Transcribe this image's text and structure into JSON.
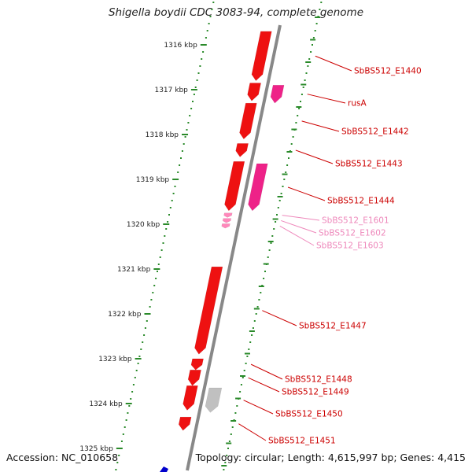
{
  "title": "Shigella boydii CDC 3083-94, complete genome",
  "footer": {
    "accession": "Accession: NC_010658",
    "stats": "Topology: circular; Length: 4,615,997 bp; Genes: 4,415"
  },
  "colors": {
    "background": "#ffffff",
    "backbone": "#888888",
    "tick_dots": "#2a8a2a",
    "gene_red": "#ee1111",
    "gene_magenta": "#ee2288",
    "gene_pink": "#ff88bb",
    "gene_grey": "#c0c0c0",
    "label_red": "#cc0000",
    "label_pink": "#ee88bb",
    "text": "#222222"
  },
  "scale": {
    "unit": "kbp",
    "ticks": [
      {
        "kbp": 1316,
        "label": "1316 kbp"
      },
      {
        "kbp": 1317,
        "label": "1317 kbp"
      },
      {
        "kbp": 1318,
        "label": "1318 kbp"
      },
      {
        "kbp": 1319,
        "label": "1319 kbp"
      },
      {
        "kbp": 1320,
        "label": "1320 kbp"
      },
      {
        "kbp": 1321,
        "label": "1321 kbp"
      },
      {
        "kbp": 1322,
        "label": "1322 kbp"
      },
      {
        "kbp": 1323,
        "label": "1323 kbp"
      },
      {
        "kbp": 1324,
        "label": "1324 kbp"
      },
      {
        "kbp": 1325,
        "label": "1325 kbp"
      }
    ]
  },
  "genes": [
    {
      "id": "g1440",
      "label": "SbBS512_E1440",
      "start": 1315.7,
      "end": 1316.8,
      "strand": "inner",
      "color": "red",
      "labeled": true
    },
    {
      "id": "g1441",
      "label": "",
      "start": 1316.85,
      "end": 1317.25,
      "strand": "inner",
      "color": "red",
      "labeled": false
    },
    {
      "id": "grusA",
      "label": "rusA",
      "start": 1316.9,
      "end": 1317.3,
      "strand": "outer",
      "color": "magenta",
      "labeled": true
    },
    {
      "id": "g1442",
      "label": "SbBS512_E1442",
      "start": 1317.3,
      "end": 1318.1,
      "strand": "inner",
      "color": "red",
      "labeled": true
    },
    {
      "id": "g1443",
      "label": "SbBS512_E1443",
      "start": 1318.2,
      "end": 1318.5,
      "strand": "inner",
      "color": "red",
      "labeled": true
    },
    {
      "id": "g1444a",
      "label": "",
      "start": 1318.6,
      "end": 1319.7,
      "strand": "inner",
      "color": "red",
      "labeled": false
    },
    {
      "id": "g1444",
      "label": "SbBS512_E1444",
      "start": 1318.65,
      "end": 1319.7,
      "strand": "outer",
      "color": "magenta",
      "labeled": true
    },
    {
      "id": "g1601",
      "label": "SbBS512_E1601",
      "start": 1319.75,
      "end": 1319.85,
      "strand": "inner",
      "color": "pink",
      "labeled": true
    },
    {
      "id": "g1602",
      "label": "SbBS512_E1602",
      "start": 1319.87,
      "end": 1319.97,
      "strand": "inner",
      "color": "pink",
      "labeled": true
    },
    {
      "id": "g1603",
      "label": "SbBS512_E1603",
      "start": 1319.99,
      "end": 1320.09,
      "strand": "inner",
      "color": "pink",
      "labeled": true
    },
    {
      "id": "g1447",
      "label": "SbBS512_E1447",
      "start": 1320.95,
      "end": 1322.9,
      "strand": "inner",
      "color": "red",
      "labeled": true
    },
    {
      "id": "g1448",
      "label": "SbBS512_E1448",
      "start": 1323.0,
      "end": 1323.25,
      "strand": "inner",
      "color": "red",
      "labeled": true
    },
    {
      "id": "g1449",
      "label": "SbBS512_E1449",
      "start": 1323.25,
      "end": 1323.6,
      "strand": "inner",
      "color": "red",
      "labeled": true
    },
    {
      "id": "g1450a",
      "label": "",
      "start": 1323.6,
      "end": 1324.15,
      "strand": "inner",
      "color": "red",
      "labeled": false
    },
    {
      "id": "g1450",
      "label": "SbBS512_E1450",
      "start": 1323.65,
      "end": 1324.2,
      "strand": "outer",
      "color": "grey",
      "labeled": true
    },
    {
      "id": "g1451",
      "label": "SbBS512_E1451",
      "start": 1324.3,
      "end": 1324.6,
      "strand": "inner",
      "color": "red",
      "labeled": true
    }
  ]
}
